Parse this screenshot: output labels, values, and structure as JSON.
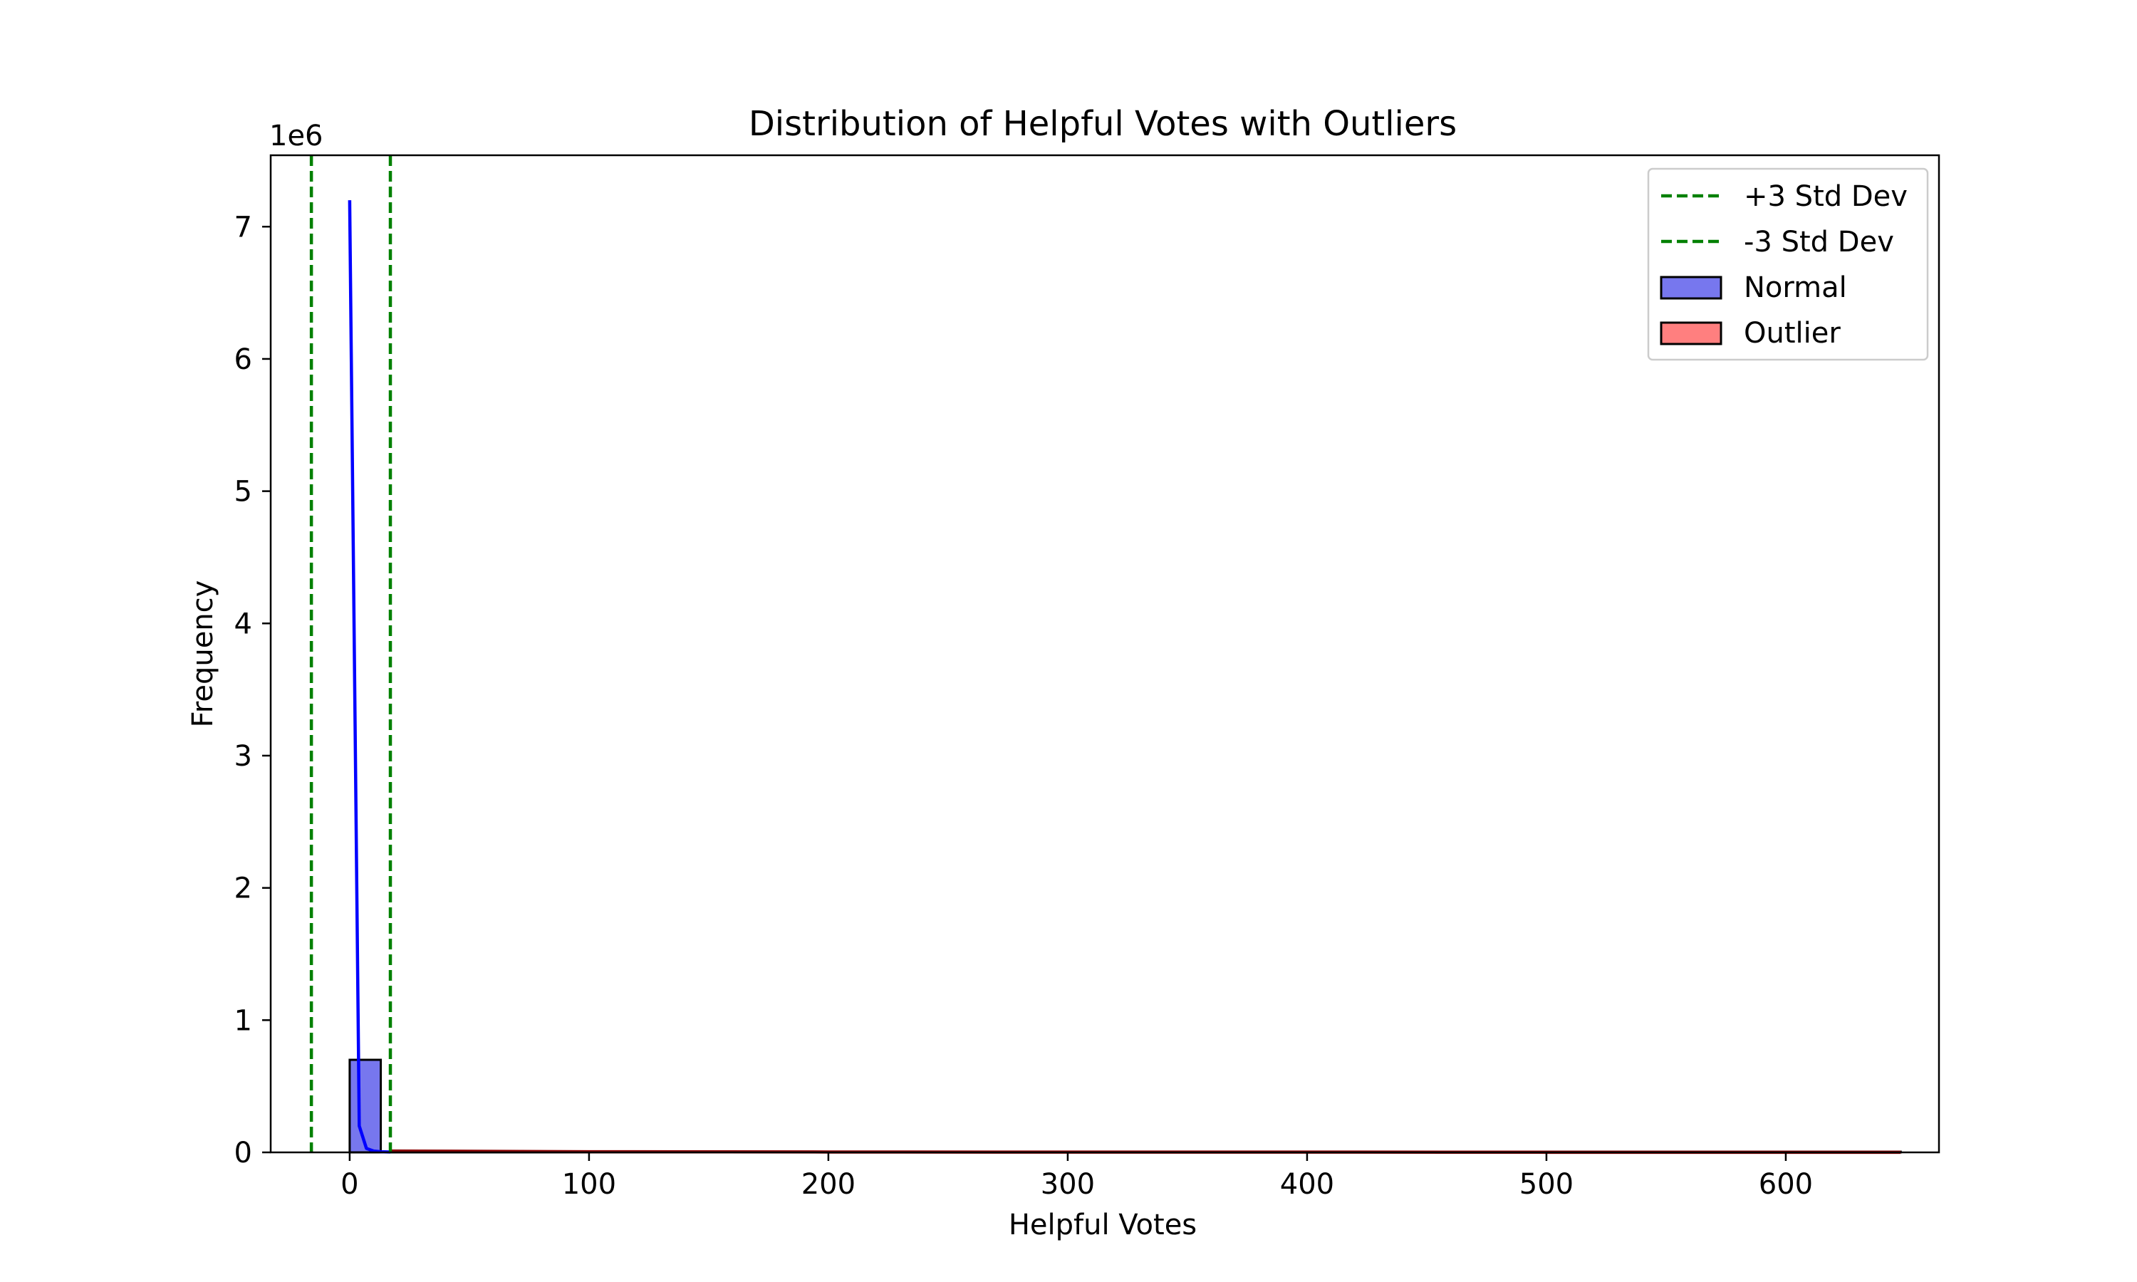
{
  "chart_data": {
    "type": "bar",
    "title": "Distribution of Helpful Votes with Outliers",
    "xlabel": "Helpful Votes",
    "ylabel": "Frequency",
    "y_offset_text": "1e6",
    "xlim": [
      -33,
      664
    ],
    "ylim": [
      0,
      7.54
    ],
    "x_ticks": [
      0,
      100,
      200,
      300,
      400,
      500,
      600
    ],
    "y_ticks": [
      0,
      1,
      2,
      3,
      4,
      5,
      6,
      7
    ],
    "grid": false,
    "legend_position": "top-right",
    "std_lines": [
      {
        "name": "+3 Std Dev",
        "x": 17,
        "color": "#008000"
      },
      {
        "name": "-3 Std Dev",
        "x": -16,
        "color": "#008000"
      }
    ],
    "series": [
      {
        "name": "Normal",
        "color": "#7777ee",
        "edge": "#000000",
        "bins": [
          {
            "x0": 0,
            "x1": 13,
            "value": 0.7
          }
        ]
      },
      {
        "name": "Outlier",
        "color": "#ff7f7f",
        "edge": "#000000",
        "bins": [
          {
            "x0": 13,
            "x1": 648,
            "value": 0.005
          }
        ]
      }
    ],
    "kde_lines": [
      {
        "series": "Normal",
        "color": "#0000ff",
        "x": [
          0,
          4,
          7,
          10,
          13,
          17
        ],
        "y": [
          7.2,
          0.2,
          0.03,
          0.01,
          0.005,
          0.003
        ]
      },
      {
        "series": "Outlier",
        "color": "#8b0000",
        "x": [
          17,
          100,
          200,
          300,
          400,
          500,
          600,
          648
        ],
        "y": [
          0.01,
          0.005,
          0.003,
          0.002,
          0.002,
          0.001,
          0.001,
          0.001
        ]
      }
    ]
  }
}
